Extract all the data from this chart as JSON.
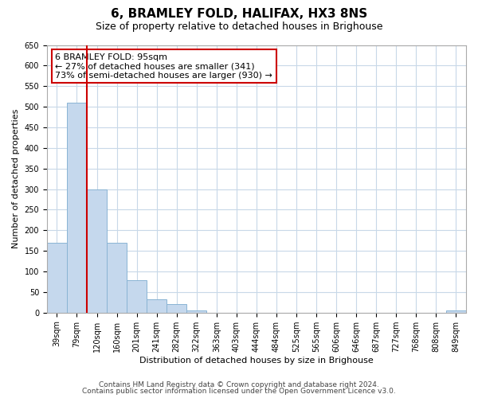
{
  "title": "6, BRAMLEY FOLD, HALIFAX, HX3 8NS",
  "subtitle": "Size of property relative to detached houses in Brighouse",
  "xlabel": "Distribution of detached houses by size in Brighouse",
  "ylabel": "Number of detached properties",
  "categories": [
    "39sqm",
    "79sqm",
    "120sqm",
    "160sqm",
    "201sqm",
    "241sqm",
    "282sqm",
    "322sqm",
    "363sqm",
    "403sqm",
    "444sqm",
    "484sqm",
    "525sqm",
    "565sqm",
    "606sqm",
    "646sqm",
    "687sqm",
    "727sqm",
    "768sqm",
    "808sqm",
    "849sqm"
  ],
  "bar_values": [
    170,
    510,
    300,
    170,
    78,
    32,
    20,
    5,
    0,
    0,
    0,
    0,
    0,
    0,
    0,
    0,
    0,
    0,
    0,
    0,
    5
  ],
  "bar_color": "#c5d8ed",
  "bar_edge_color": "#8ab4d4",
  "vline_x_index": 1.5,
  "vline_color": "#cc0000",
  "annotation_text": "6 BRAMLEY FOLD: 95sqm\n← 27% of detached houses are smaller (341)\n73% of semi-detached houses are larger (930) →",
  "annotation_box_color": "#ffffff",
  "annotation_box_edge": "#cc0000",
  "ylim": [
    0,
    650
  ],
  "yticks": [
    0,
    50,
    100,
    150,
    200,
    250,
    300,
    350,
    400,
    450,
    500,
    550,
    600,
    650
  ],
  "footer_line1": "Contains HM Land Registry data © Crown copyright and database right 2024.",
  "footer_line2": "Contains public sector information licensed under the Open Government Licence v3.0.",
  "bg_color": "#ffffff",
  "grid_color": "#c8d8e8",
  "title_fontsize": 11,
  "subtitle_fontsize": 9,
  "tick_fontsize": 7,
  "label_fontsize": 8,
  "footer_fontsize": 6.5,
  "annotation_fontsize": 8
}
